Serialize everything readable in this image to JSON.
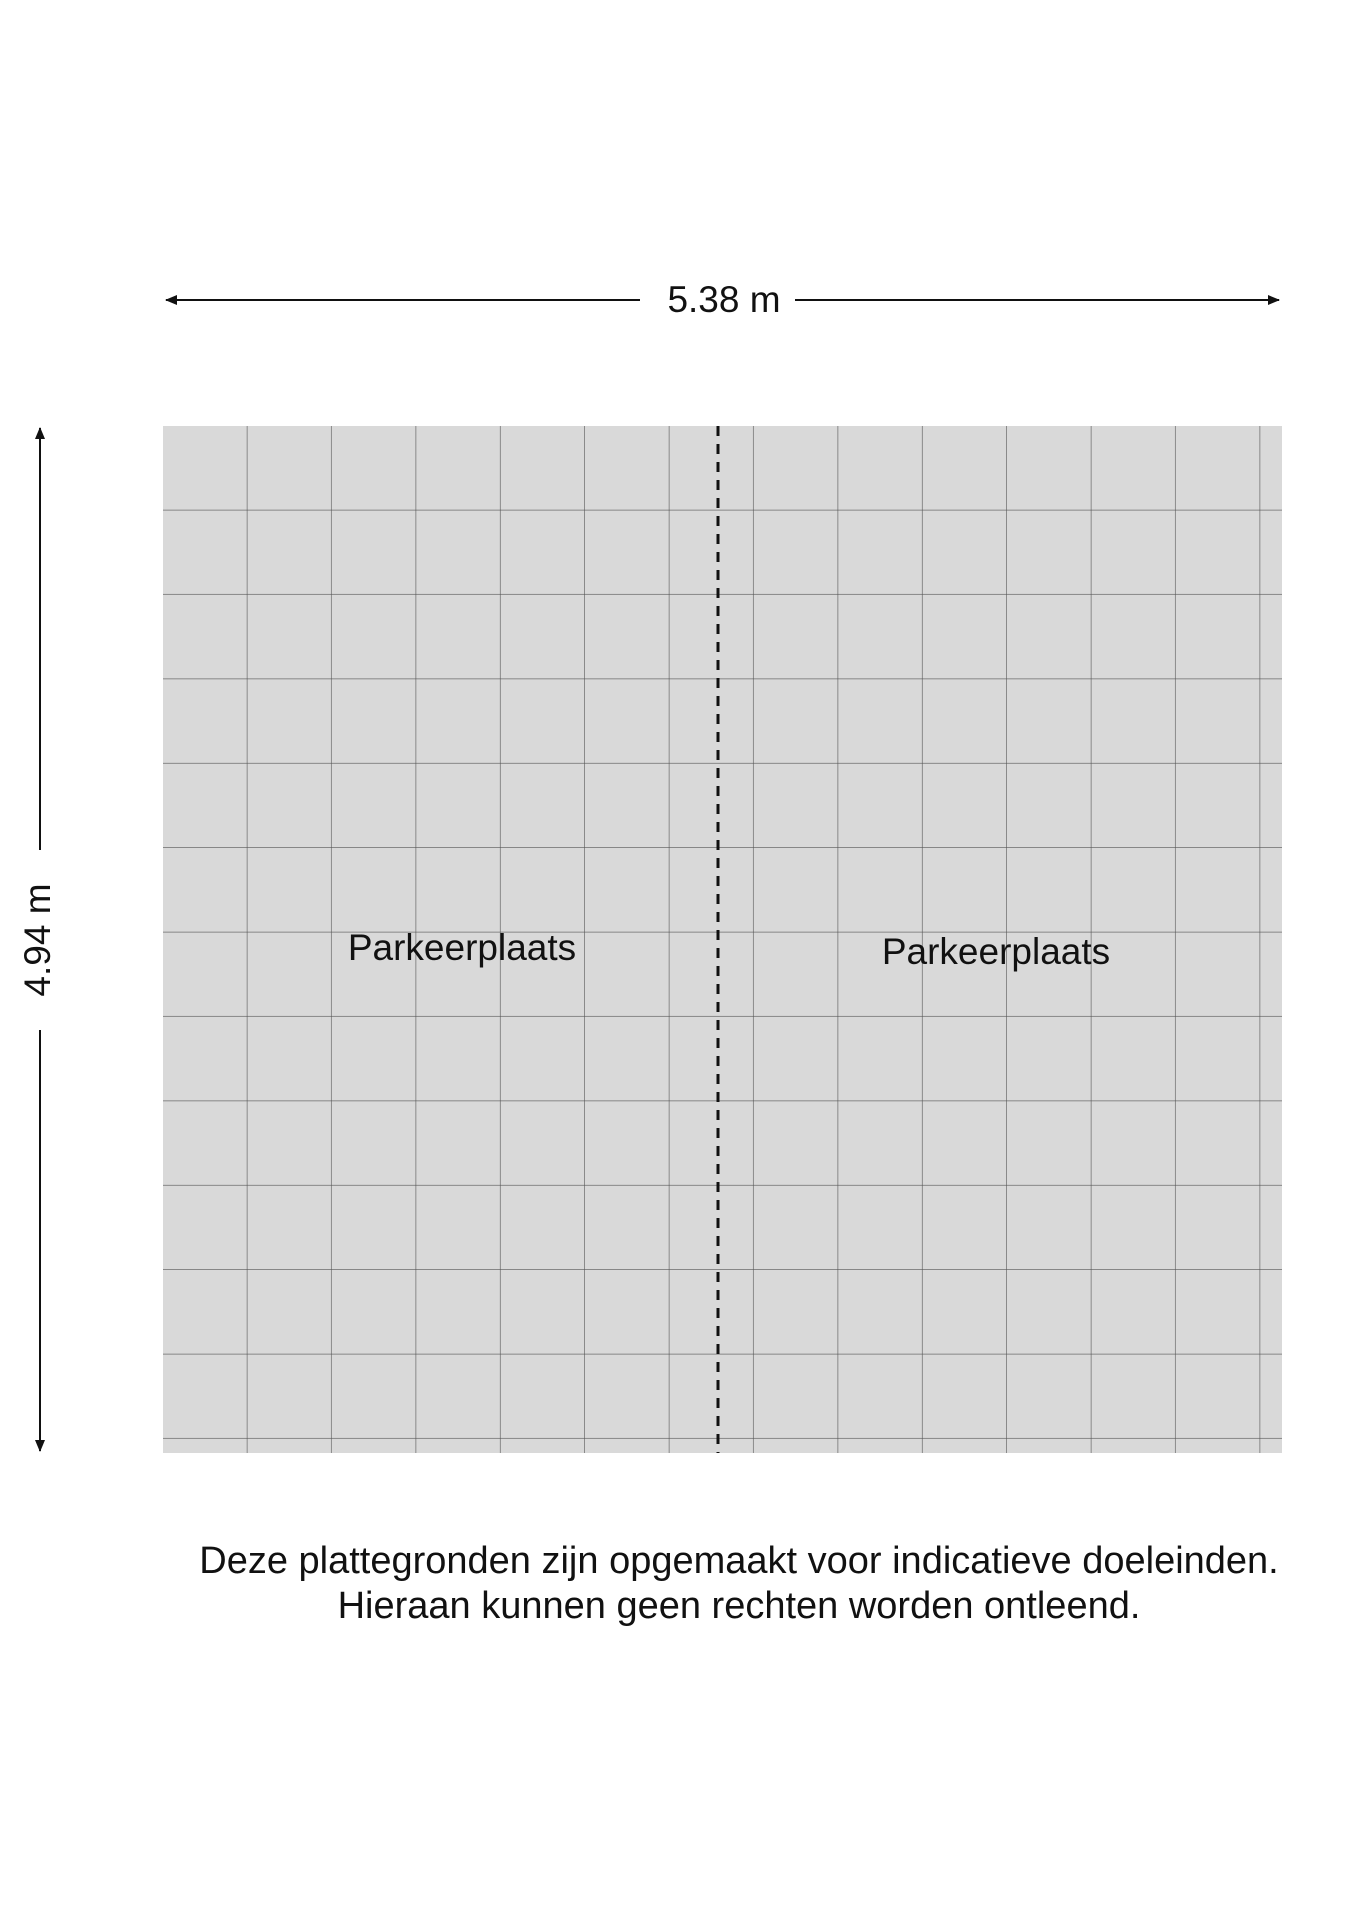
{
  "dimensions": {
    "width": "5.38 m",
    "depth": "4.94 m"
  },
  "rooms": [
    {
      "label": "Parkeerplaats"
    },
    {
      "label": "Parkeerplaats"
    }
  ],
  "disclaimer": [
    "Deze plattegronden zijn opgemaakt voor indicatieve doeleinden.",
    "Hieraan kunnen geen rechten worden ontleend."
  ]
}
